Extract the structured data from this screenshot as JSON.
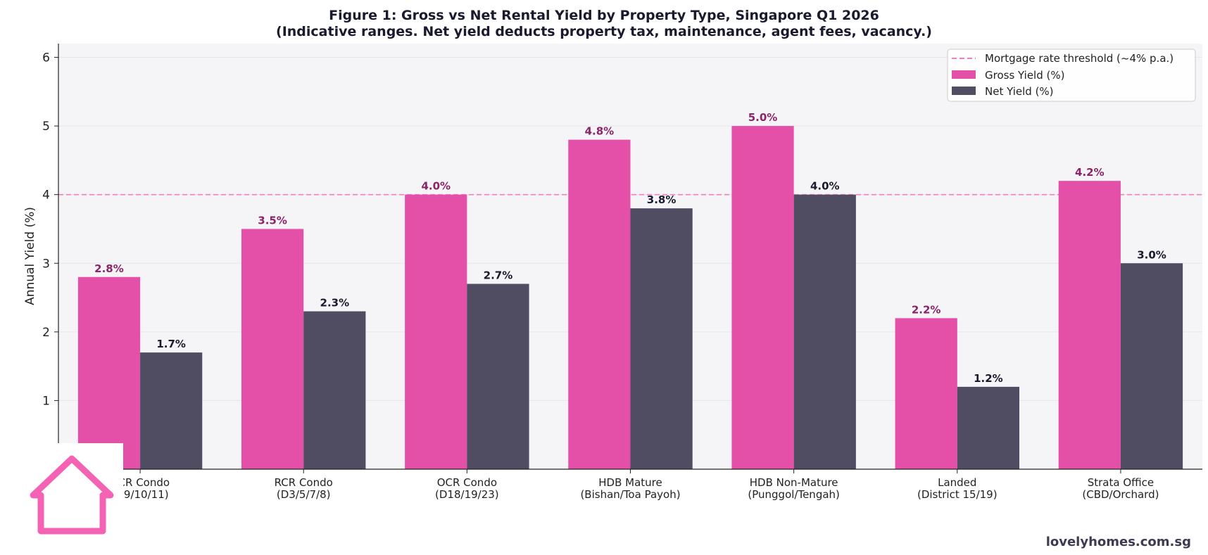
{
  "chart_data": {
    "type": "bar",
    "title": "Figure 1: Gross vs Net Rental Yield by Property Type, Singapore Q1 2026",
    "subtitle": "(Indicative ranges. Net yield deducts property tax, maintenance, agent fees, vacancy.)",
    "ylabel": "Annual Yield (%)",
    "xlabel": "",
    "ylim": [
      0,
      6.2
    ],
    "yticks": [
      1,
      2,
      3,
      4,
      5,
      6
    ],
    "grid": true,
    "legend_position": "top-right",
    "categories": [
      [
        "CCR Condo",
        "(D9/10/11)"
      ],
      [
        "RCR Condo",
        "(D3/5/7/8)"
      ],
      [
        "OCR Condo",
        "(D18/19/23)"
      ],
      [
        "HDB Mature",
        "(Bishan/Toa Payoh)"
      ],
      [
        "HDB Non-Mature",
        "(Punggol/Tengah)"
      ],
      [
        "Landed",
        "(District 15/19)"
      ],
      [
        "Strata Office",
        "(CBD/Orchard)"
      ]
    ],
    "series": [
      {
        "name": "Gross Yield (%)",
        "color": "#e44fa8",
        "label_color": "#8b2467",
        "values": [
          2.8,
          3.5,
          4.0,
          4.8,
          5.0,
          2.2,
          4.2
        ],
        "labels": [
          "2.8%",
          "3.5%",
          "4.0%",
          "4.8%",
          "5.0%",
          "2.2%",
          "4.2%"
        ]
      },
      {
        "name": "Net Yield (%)",
        "color": "#504d62",
        "label_color": "#1a1a2e",
        "values": [
          1.7,
          2.3,
          2.7,
          3.8,
          4.0,
          1.2,
          3.0
        ],
        "labels": [
          "1.7%",
          "2.3%",
          "2.7%",
          "3.8%",
          "4.0%",
          "1.2%",
          "3.0%"
        ]
      }
    ],
    "reference_line": {
      "name": "Mortgage rate threshold (~4% p.a.)",
      "value": 4,
      "color": "#f080c0"
    }
  },
  "footer": {
    "site": "lovelyhomes.com.sg"
  },
  "logo": {
    "icon": "house-icon",
    "color": "#f462b4"
  }
}
